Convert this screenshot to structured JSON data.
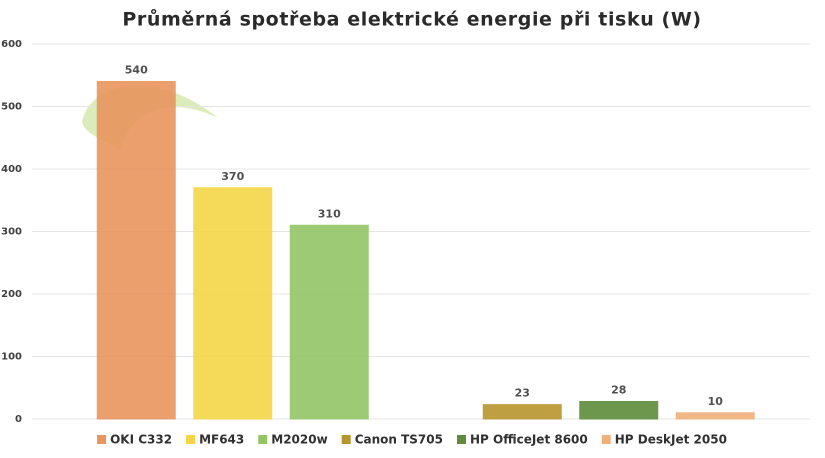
{
  "chart_data": {
    "type": "bar",
    "title": "Průměrná spotřeba elektrické energie při tisku (W)",
    "categories": [
      null,
      null,
      null,
      null,
      null,
      null,
      null
    ],
    "series": [
      {
        "name": "OKI C332",
        "color": "#e8955e",
        "values": [
          540,
          null,
          null,
          null,
          null,
          null,
          null
        ]
      },
      {
        "name": "MF643",
        "color": "#f5d547",
        "values": [
          null,
          370,
          null,
          null,
          null,
          null,
          null
        ]
      },
      {
        "name": "M2020w",
        "color": "#93c565",
        "values": [
          null,
          null,
          310,
          null,
          null,
          null,
          null
        ]
      },
      {
        "name": "Canon TS705",
        "color": "#b8962e",
        "values": [
          null,
          null,
          null,
          null,
          23,
          null,
          null
        ]
      },
      {
        "name": "HP OfficeJet 8600",
        "color": "#5e8c3a",
        "values": [
          null,
          null,
          null,
          null,
          null,
          28,
          null
        ]
      },
      {
        "name": "HP DeskJet 2050",
        "color": "#f0b07a",
        "values": [
          null,
          null,
          null,
          null,
          null,
          null,
          10
        ]
      }
    ],
    "ylim": [
      0,
      600
    ],
    "yticks": [
      0,
      100,
      200,
      300,
      400,
      500,
      600
    ],
    "grid": true
  }
}
